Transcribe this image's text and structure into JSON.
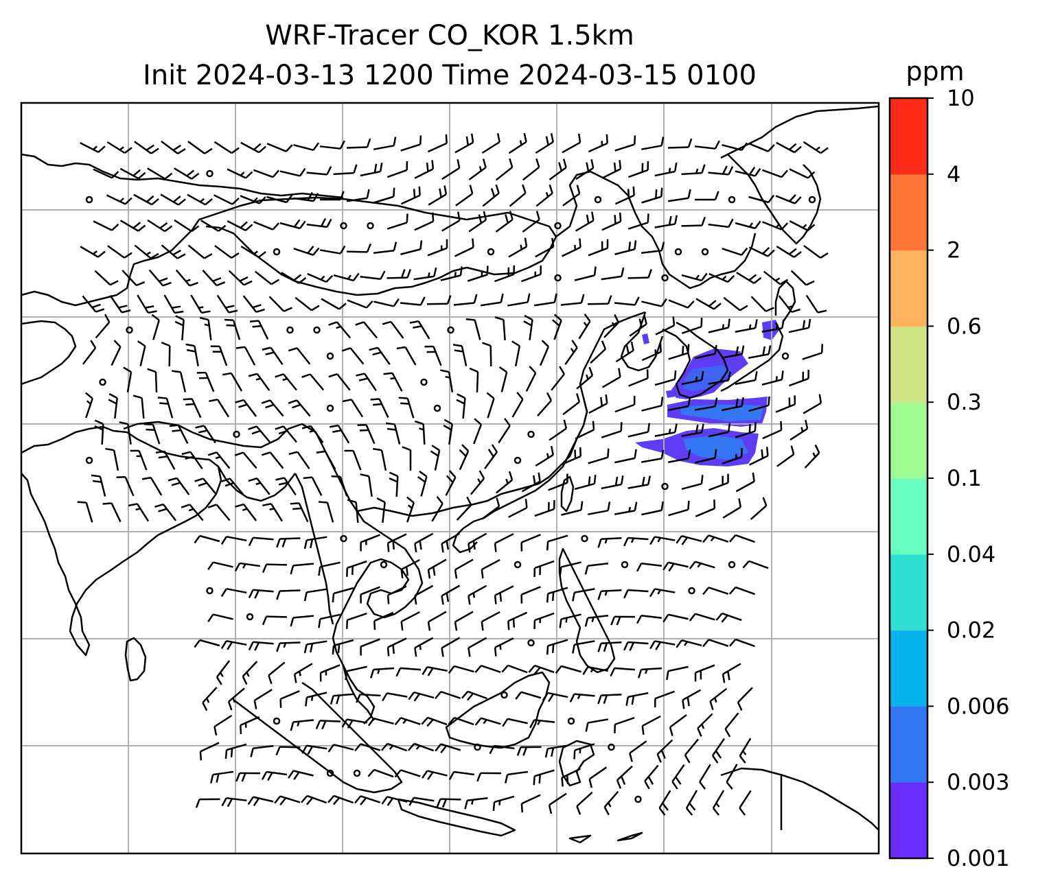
{
  "figure": {
    "title_line1": "WRF-Tracer CO_KOR 1.5km",
    "title_line2": "Init 2024-03-13 1200 Time 2024-03-15 0100"
  },
  "colorbar": {
    "unit": "ppm",
    "ticks": [
      "0.001",
      "0.003",
      "0.006",
      "0.02",
      "0.04",
      "0.1",
      "0.3",
      "0.6",
      "2",
      "4",
      "10"
    ],
    "colors": [
      "#6a2cff",
      "#3476f4",
      "#06b3ec",
      "#31e0d3",
      "#6affc0",
      "#a1fb93",
      "#d2e286",
      "#ffb260",
      "#ff7437",
      "#ff2b19"
    ]
  },
  "map": {
    "gridlines": true,
    "coastline_color": "#000000",
    "grid_color": "#b0b0b0",
    "wind_barb_color": "#000000",
    "tracer_field": "CO_KOR"
  }
}
